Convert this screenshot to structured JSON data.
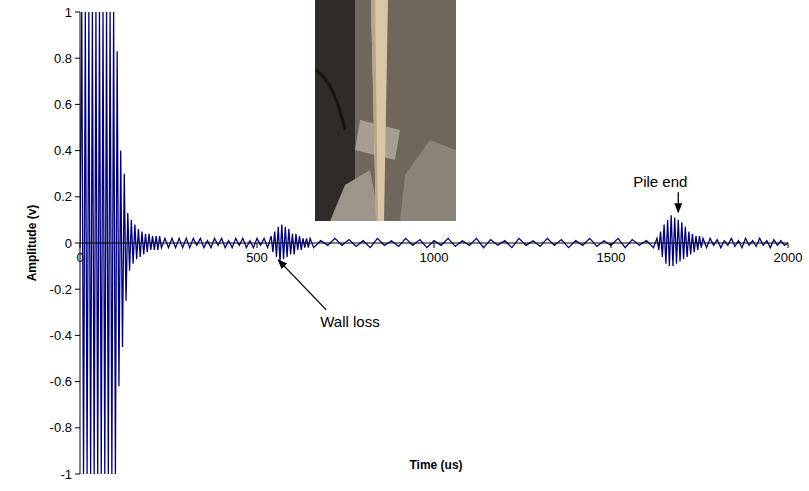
{
  "chart_data": {
    "type": "line",
    "x_label": "Time (us)",
    "y_label": "Amplitude (v)",
    "color": "#000080",
    "grid": false,
    "xlim": [
      0,
      2000
    ],
    "ylim": [
      -1,
      1
    ],
    "xticks": [
      0,
      500,
      1000,
      1500,
      2000
    ],
    "yticks": [
      -1,
      -0.8,
      -0.6,
      -0.4,
      -0.2,
      0,
      0.2,
      0.4,
      0.6,
      0.8,
      1
    ],
    "annotations": [
      {
        "text": "Wall loss",
        "x": 560,
        "y": -0.06
      },
      {
        "text": "Pile end",
        "x": 1690,
        "y": 0.12
      }
    ],
    "x": [
      0,
      5,
      10,
      15,
      20,
      25,
      30,
      35,
      40,
      45,
      50,
      55,
      60,
      65,
      70,
      75,
      80,
      85,
      90,
      95,
      100,
      105,
      110,
      115,
      120,
      125,
      130,
      135,
      140,
      145,
      150,
      155,
      160,
      165,
      170,
      175,
      180,
      185,
      190,
      195,
      200,
      205,
      210,
      215,
      220,
      225,
      230,
      240,
      250,
      260,
      270,
      280,
      290,
      300,
      310,
      320,
      330,
      340,
      350,
      360,
      370,
      380,
      390,
      400,
      410,
      420,
      430,
      440,
      450,
      460,
      470,
      480,
      490,
      500,
      510,
      520,
      530,
      540,
      545,
      550,
      555,
      560,
      565,
      570,
      575,
      580,
      585,
      590,
      595,
      600,
      605,
      610,
      615,
      620,
      625,
      630,
      635,
      640,
      645,
      650,
      660,
      680,
      700,
      720,
      740,
      760,
      780,
      800,
      820,
      840,
      860,
      880,
      900,
      920,
      940,
      960,
      980,
      1000,
      1020,
      1040,
      1060,
      1080,
      1100,
      1120,
      1140,
      1160,
      1180,
      1200,
      1220,
      1240,
      1260,
      1280,
      1300,
      1320,
      1340,
      1360,
      1380,
      1400,
      1420,
      1440,
      1460,
      1480,
      1500,
      1520,
      1540,
      1560,
      1580,
      1600,
      1620,
      1630,
      1635,
      1640,
      1645,
      1650,
      1655,
      1660,
      1665,
      1670,
      1675,
      1680,
      1685,
      1690,
      1695,
      1700,
      1705,
      1710,
      1715,
      1720,
      1725,
      1730,
      1735,
      1740,
      1745,
      1750,
      1755,
      1760,
      1770,
      1780,
      1790,
      1800,
      1810,
      1820,
      1830,
      1840,
      1850,
      1860,
      1870,
      1880,
      1890,
      1900,
      1910,
      1920,
      1930,
      1940,
      1950,
      1960,
      1970,
      1980,
      1990,
      2000
    ],
    "values": [
      0,
      1,
      -1,
      1,
      -1,
      1,
      -1,
      1,
      -1,
      1,
      -1,
      1,
      -1,
      1,
      -1,
      1,
      -1,
      1,
      -1,
      1,
      -1,
      0.83,
      -0.62,
      0.4,
      -0.45,
      0.3,
      -0.25,
      0.13,
      -0.12,
      0.1,
      -0.09,
      0.08,
      -0.07,
      0.06,
      -0.06,
      0.05,
      -0.05,
      0.04,
      -0.04,
      0.04,
      -0.03,
      0.03,
      -0.03,
      0.03,
      -0.03,
      0.03,
      -0.02,
      0.02,
      -0.02,
      0.02,
      -0.02,
      0.02,
      -0.02,
      0.02,
      -0.02,
      0.02,
      -0.01,
      0.02,
      -0.02,
      0.01,
      -0.02,
      0.02,
      -0.01,
      0.02,
      -0.02,
      0.01,
      -0.02,
      0.02,
      -0.01,
      0.02,
      -0.02,
      0.01,
      -0.02,
      0.02,
      -0.01,
      0.02,
      -0.02,
      0.03,
      -0.04,
      0.05,
      -0.06,
      0.07,
      -0.08,
      0.08,
      -0.07,
      0.07,
      -0.06,
      0.06,
      -0.05,
      0.04,
      -0.05,
      0.04,
      -0.03,
      0.03,
      -0.03,
      0.02,
      -0.02,
      0.02,
      -0.02,
      0.02,
      -0.02,
      0.01,
      -0.01,
      0.02,
      -0.01,
      0.015,
      -0.015,
      0.01,
      -0.02,
      0.02,
      -0.01,
      0.01,
      -0.015,
      0.02,
      -0.01,
      0.015,
      -0.02,
      0.01,
      -0.01,
      0.02,
      -0.015,
      0.01,
      -0.01,
      0.02,
      -0.02,
      0.015,
      -0.01,
      0.01,
      -0.02,
      0.02,
      -0.01,
      0.01,
      -0.015,
      0.02,
      -0.01,
      0.015,
      -0.02,
      0.01,
      -0.01,
      0.02,
      -0.015,
      0.01,
      -0.01,
      0.02,
      -0.02,
      0.015,
      -0.01,
      0.01,
      -0.02,
      0.02,
      -0.03,
      0.05,
      -0.06,
      0.08,
      -0.09,
      0.1,
      -0.1,
      0.12,
      -0.1,
      0.11,
      -0.09,
      0.1,
      -0.08,
      0.09,
      -0.07,
      0.07,
      -0.06,
      0.05,
      -0.05,
      0.04,
      -0.04,
      0.03,
      -0.03,
      0.03,
      -0.02,
      0.02,
      -0.02,
      0.02,
      -0.01,
      0.015,
      -0.02,
      0.01,
      -0.01,
      0.02,
      -0.015,
      0.01,
      -0.02,
      0.02,
      -0.01,
      0.01,
      -0.015,
      0.02,
      -0.01,
      0.01,
      -0.02,
      0.015,
      -0.01,
      0.01,
      -0.01,
      0
    ]
  }
}
